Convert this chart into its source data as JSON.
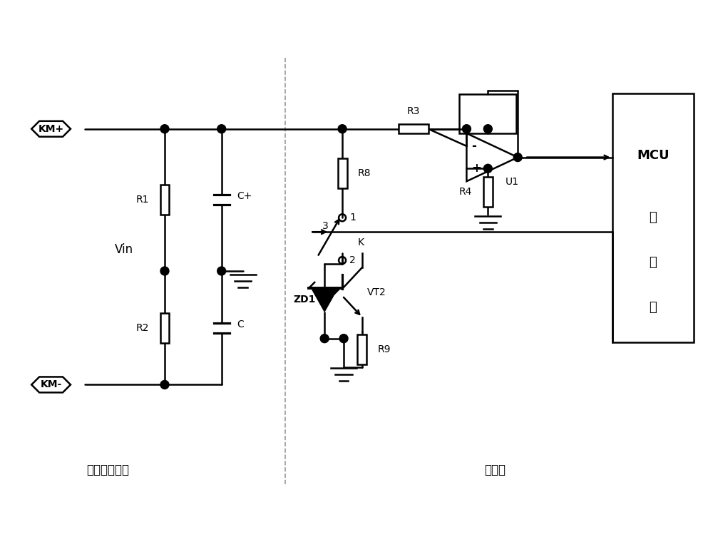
{
  "bg_color": "#ffffff",
  "line_color": "#000000",
  "line_width": 1.8,
  "dashed_line_color": "#aaaaaa",
  "fig_width": 10.0,
  "fig_height": 7.6,
  "label_直流电源系统": "直流电源系统",
  "label_本发明": "本发明",
  "label_MCU": "MCU\n控\n制\n器",
  "label_Vin": "Vin",
  "label_KM+": "KM+",
  "label_KM-": "KM-",
  "label_R1": "R1",
  "label_R2": "R2",
  "label_C+": "C+",
  "label_C": "C",
  "label_R3": "R3",
  "label_R4": "R4",
  "label_R8": "R8",
  "label_R9": "R9",
  "label_ZD1": "ZD1",
  "label_VT2": "VT2",
  "label_U1": "U1",
  "label_K": "K",
  "label_1": "1",
  "label_2": "2",
  "label_3": "3"
}
